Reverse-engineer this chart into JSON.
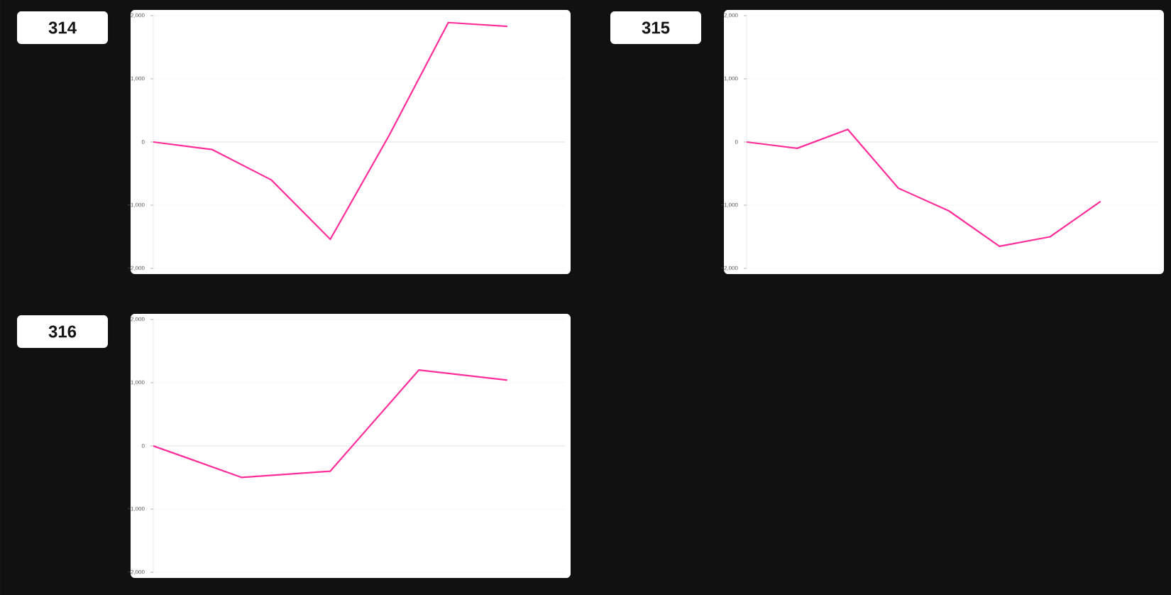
{
  "chart_data": [
    {
      "type": "line",
      "title": "314",
      "categories": [
        null,
        null,
        null,
        null,
        null,
        null,
        null
      ],
      "values": [
        0,
        -120,
        -600,
        -1540,
        110,
        1890,
        1830
      ],
      "color": "#ff2e9a",
      "marker": "none",
      "ylim": [
        -2000,
        2000
      ],
      "yticks": [
        {
          "value": -2000,
          "label": "−2,000"
        },
        {
          "value": -1000,
          "label": "−1,000"
        },
        {
          "value": 0,
          "label": "0"
        },
        {
          "value": 1000,
          "label": "1,000"
        },
        {
          "value": 2000,
          "label": "2,000"
        }
      ],
      "grid": "y",
      "tick_labels": "y"
    },
    {
      "type": "line",
      "title": "315",
      "categories": [
        null,
        null,
        null,
        null,
        null,
        null,
        null,
        null
      ],
      "values": [
        0,
        -100,
        200,
        -730,
        -1090,
        -1650,
        -1500,
        -940
      ],
      "color": "#ff2e9a",
      "marker": "none",
      "ylim": [
        -2000,
        2000
      ],
      "yticks": [
        {
          "value": -2000,
          "label": "−2,000"
        },
        {
          "value": -1000,
          "label": "−1,000"
        },
        {
          "value": 0,
          "label": "0"
        },
        {
          "value": 1000,
          "label": "1,000"
        },
        {
          "value": 2000,
          "label": "2,000"
        }
      ],
      "grid": "y",
      "tick_labels": "y"
    },
    {
      "type": "line",
      "title": "316",
      "categories": [
        null,
        null,
        null,
        null,
        null
      ],
      "values": [
        0,
        -500,
        -400,
        1200,
        1040
      ],
      "color": "#ff2e9a",
      "marker": "none",
      "ylim": [
        -2000,
        2000
      ],
      "yticks": [
        {
          "value": -2000,
          "label": "−2,000"
        },
        {
          "value": -1000,
          "label": "−1,000"
        },
        {
          "value": 0,
          "label": "0"
        },
        {
          "value": 1000,
          "label": "1,000"
        },
        {
          "value": 2000,
          "label": "2,000"
        }
      ],
      "grid": "y",
      "tick_labels": "y"
    }
  ]
}
